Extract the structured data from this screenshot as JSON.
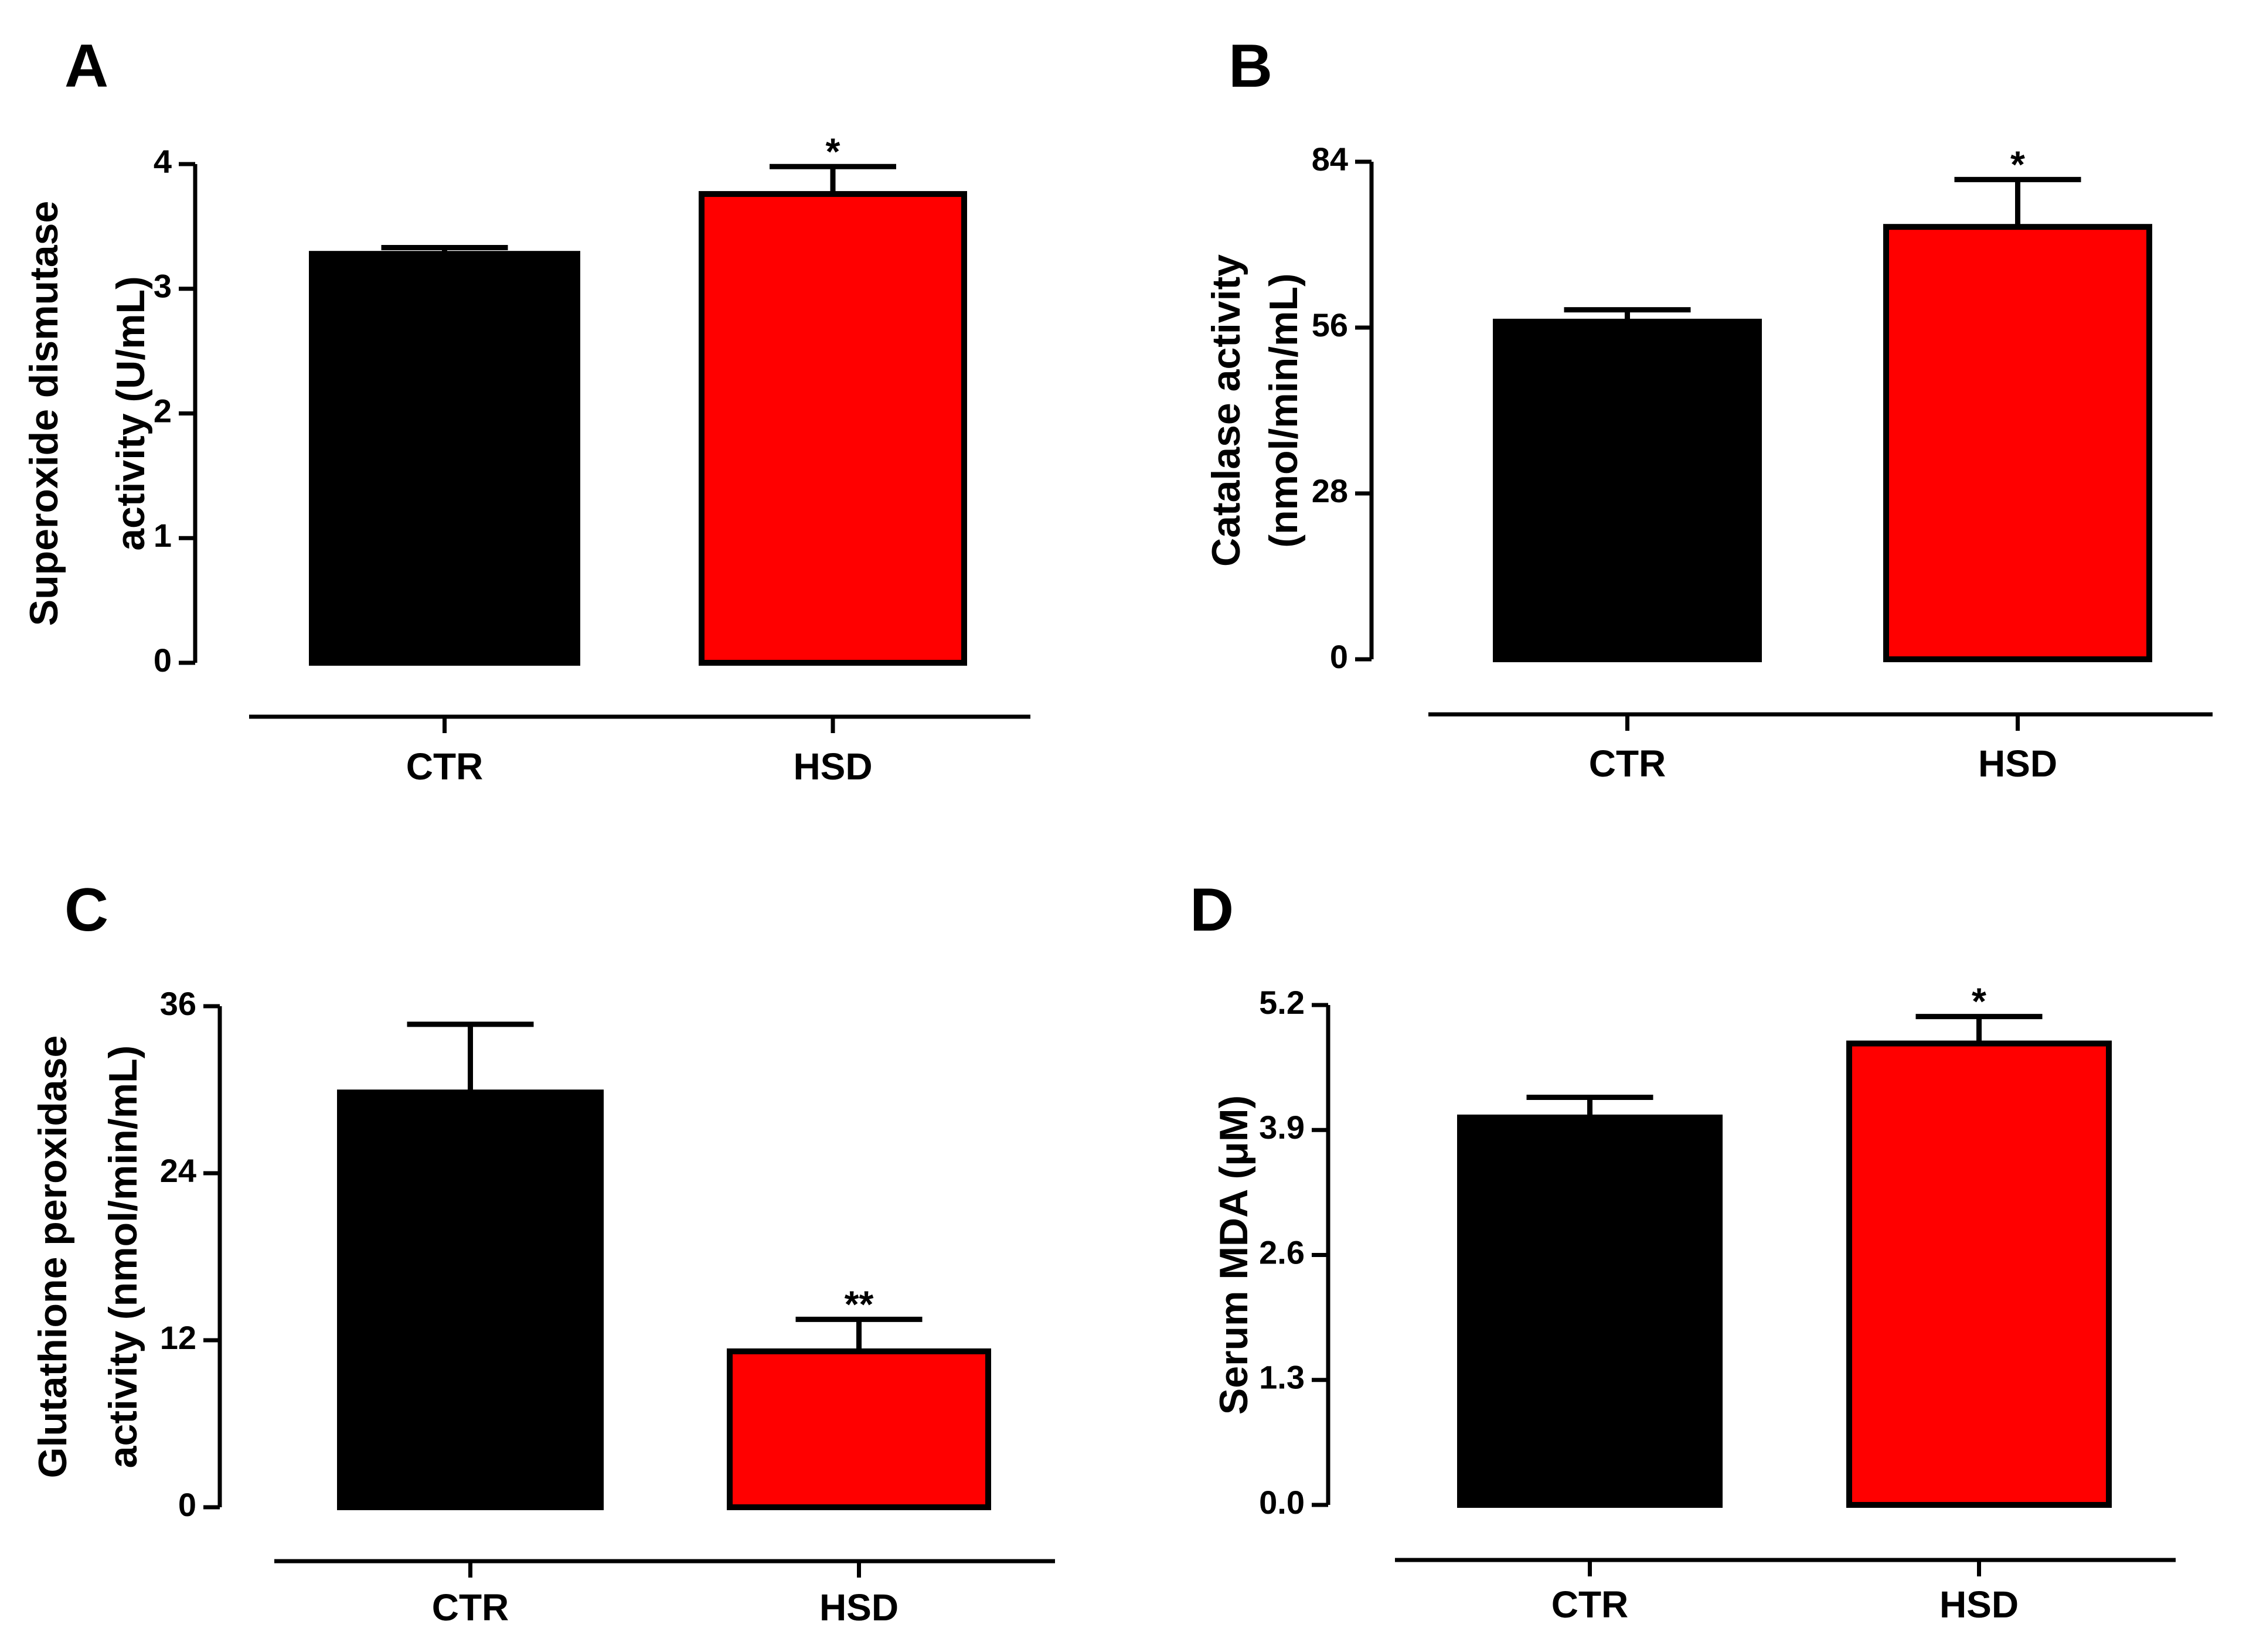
{
  "figure": {
    "colors": {
      "ctr": "#000000",
      "hsd": "#ff0000",
      "edge": "#000000"
    }
  },
  "chart_data": [
    {
      "panel": "A",
      "type": "bar",
      "categories": [
        "CTR",
        "HSD"
      ],
      "values": [
        3.28,
        3.76
      ],
      "errors": [
        0.05,
        0.22
      ],
      "significance": [
        "",
        "*"
      ],
      "ylabel_lines": [
        "Superoxide dismutase",
        "activity (U/mL)"
      ],
      "ylim": [
        0,
        4
      ],
      "yticks": [
        "0",
        "1",
        "2",
        "3",
        "4"
      ],
      "ytick_values": [
        0,
        1,
        2,
        3,
        4
      ]
    },
    {
      "panel": "B",
      "type": "bar",
      "categories": [
        "CTR",
        "HSD"
      ],
      "values": [
        57,
        73
      ],
      "errors": [
        2,
        8
      ],
      "significance": [
        "",
        "*"
      ],
      "ylabel_lines": [
        "Catalase activity",
        "(nmol/min/mL)"
      ],
      "ylim": [
        0,
        84
      ],
      "yticks": [
        "0",
        "28",
        "56",
        "84"
      ],
      "ytick_values": [
        0,
        28,
        56,
        84
      ]
    },
    {
      "panel": "C",
      "type": "bar",
      "categories": [
        "CTR",
        "HSD"
      ],
      "values": [
        29.8,
        11.2
      ],
      "errors": [
        4.9,
        2.3
      ],
      "significance": [
        "",
        "**"
      ],
      "ylabel_lines": [
        "Glutathione peroxidase",
        "activity (nmol/min/mL)"
      ],
      "ylim": [
        0,
        36
      ],
      "yticks": [
        "0",
        "12",
        "24",
        "36"
      ],
      "ytick_values": [
        0,
        12,
        24,
        36
      ]
    },
    {
      "panel": "D",
      "type": "bar",
      "categories": [
        "CTR",
        "HSD"
      ],
      "values": [
        4.03,
        4.8
      ],
      "errors": [
        0.21,
        0.28
      ],
      "significance": [
        "",
        "*"
      ],
      "ylabel_lines": [
        "Serum MDA (μM)"
      ],
      "ylim": [
        0,
        5.2
      ],
      "yticks": [
        "0.0",
        "1.3",
        "2.6",
        "3.9",
        "5.2"
      ],
      "ytick_values": [
        0,
        1.3,
        2.6,
        3.9,
        5.2
      ]
    }
  ]
}
